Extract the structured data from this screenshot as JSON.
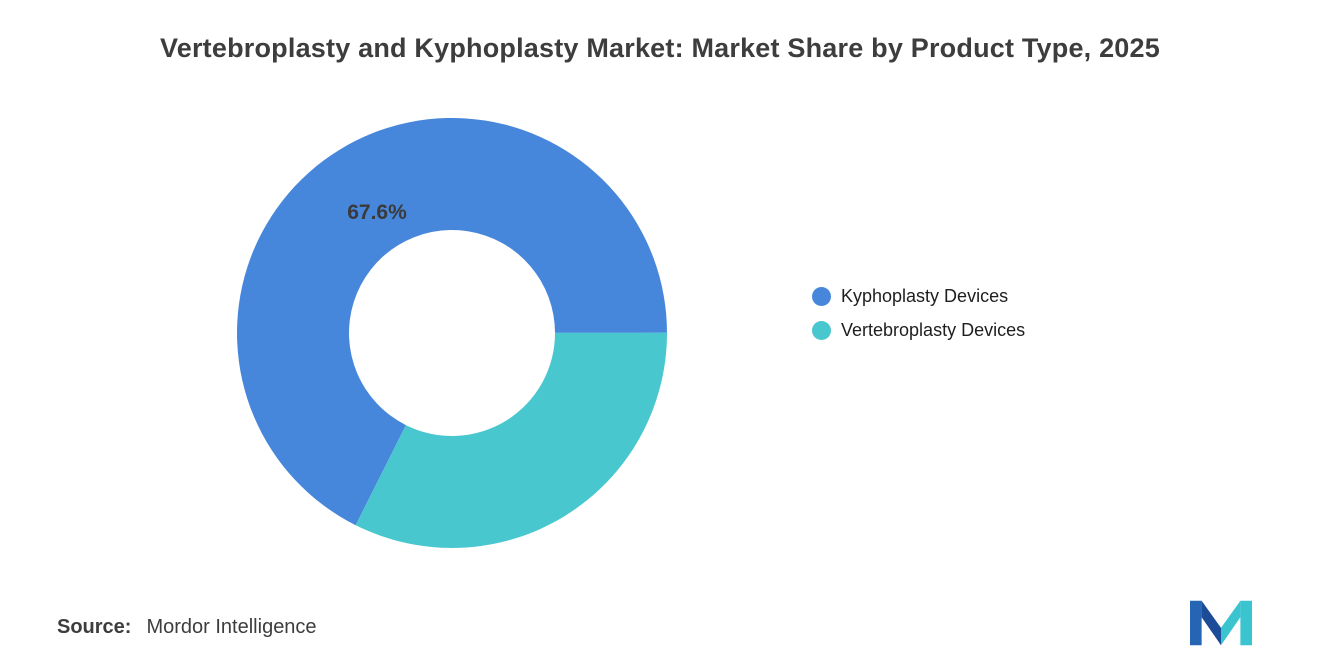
{
  "title": "Vertebroplasty and Kyphoplasty Market: Market Share by Product Type, 2025",
  "chart_data": {
    "type": "pie",
    "donut": true,
    "title": "Vertebroplasty and Kyphoplasty Market: Market Share by Product Type, 2025",
    "series": [
      {
        "name": "Kyphoplasty Devices",
        "value": 67.6,
        "color": "#4787DB"
      },
      {
        "name": "Vertebroplasty Devices",
        "value": 32.4,
        "color": "#49C7CE"
      }
    ],
    "slice_label": "67.6%",
    "legend_position": "right",
    "rotation_deg": 206.6
  },
  "footer": {
    "source_label": "Source:",
    "source_value": "Mordor Intelligence"
  },
  "brand": {
    "logo_blue": "#2565B4",
    "logo_navy": "#1C4C97",
    "logo_teal": "#3AC4CF"
  }
}
